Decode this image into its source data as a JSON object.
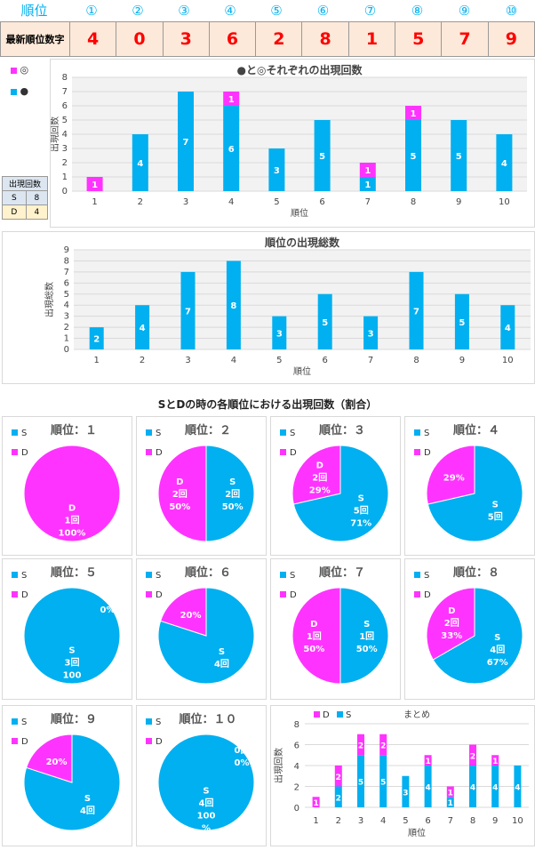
{
  "header": {
    "rank_label": "順位",
    "rank_numbers": [
      "①",
      "②",
      "③",
      "④",
      "⑤",
      "⑥",
      "⑦",
      "⑧",
      "⑨",
      "⑩"
    ],
    "digits_label": "最新順位数字",
    "digits": [
      "4",
      "0",
      "3",
      "6",
      "2",
      "8",
      "1",
      "5",
      "7",
      "9"
    ]
  },
  "legend_top": {
    "d_symbol": "◎",
    "s_symbol": "●"
  },
  "mini_table": {
    "title": "出現回数",
    "rows": [
      {
        "key": "S",
        "value": "8"
      },
      {
        "key": "D",
        "value": "4"
      }
    ]
  },
  "colors": {
    "s": "#00b0f0",
    "d": "#ff33ff",
    "grid": "#d9d9d9",
    "plot_bg": "#f2f2f2",
    "digit_bg": "#fde9d9",
    "digit_text": "#ff0000"
  },
  "chart_data": [
    {
      "type": "bar",
      "title": "●と◎それぞれの出現回数",
      "categories": [
        "1",
        "2",
        "3",
        "4",
        "5",
        "6",
        "7",
        "8",
        "9",
        "10"
      ],
      "series": [
        {
          "values": [
            0,
            4,
            7,
            6,
            3,
            5,
            1,
            5,
            5,
            4
          ]
        },
        {
          "values": [
            1,
            0,
            0,
            1,
            0,
            0,
            1,
            1,
            0,
            0
          ]
        }
      ],
      "xlabel": "順位",
      "ylabel": "出現回数",
      "ylim": [
        0,
        8
      ],
      "stacked": true,
      "grid": true
    },
    {
      "type": "bar",
      "title": "順位の出現総数",
      "categories": [
        "1",
        "2",
        "3",
        "4",
        "5",
        "6",
        "7",
        "8",
        "9",
        "10"
      ],
      "values": [
        2,
        4,
        7,
        8,
        3,
        5,
        3,
        7,
        5,
        4
      ],
      "xlabel": "順位",
      "ylabel": "出現総数",
      "ylim": [
        0,
        9
      ],
      "grid": true
    },
    {
      "type": "pie",
      "section_title": "SとDの時の各順位における出現回数（割合）",
      "legend": [
        "S",
        "D"
      ],
      "pies": [
        {
          "title": "順位：１",
          "s": 0,
          "d": 1,
          "s_label": "",
          "d_label": "D\n1回\n100%",
          "s_pct": "0%",
          "d_pct": "100%"
        },
        {
          "title": "順位：２",
          "s": 2,
          "d": 2,
          "s_label": "S\n2回\n50%",
          "d_label": "D\n2回\n50%"
        },
        {
          "title": "順位：３",
          "s": 5,
          "d": 2,
          "s_label": "S\n5回\n71%",
          "d_label": "D\n2回\n29%"
        },
        {
          "title": "順位：４",
          "s": 5,
          "d": 2,
          "s_label": "S\n5回",
          "d_label": "29%"
        },
        {
          "title": "順位：５",
          "s": 3,
          "d": 0,
          "s_label": "S\n3回\n100",
          "d_label": "0%"
        },
        {
          "title": "順位：６",
          "s": 4,
          "d": 1,
          "s_label": "S\n4回",
          "d_label": "20%"
        },
        {
          "title": "順位：７",
          "s": 1,
          "d": 1,
          "s_label": "S\n1回\n50%",
          "d_label": "D\n1回\n50%"
        },
        {
          "title": "順位：８",
          "s": 4,
          "d": 2,
          "s_label": "S\n4回\n67%",
          "d_label": "D\n2回\n33%"
        },
        {
          "title": "順位：９",
          "s": 4,
          "d": 1,
          "s_label": "S\n4回",
          "d_label": "20%"
        },
        {
          "title": "順位：１０",
          "s": 4,
          "d": 0,
          "s_label": "S\n4回\n100\n%",
          "d_label": "0回\n0%"
        }
      ]
    },
    {
      "type": "bar",
      "title": "まとめ",
      "categories": [
        "1",
        "2",
        "3",
        "4",
        "5",
        "6",
        "7",
        "8",
        "9",
        "10"
      ],
      "legend": [
        "D",
        "S"
      ],
      "series": [
        {
          "name": "S",
          "values": [
            0,
            2,
            5,
            5,
            3,
            4,
            1,
            4,
            4,
            4
          ]
        },
        {
          "name": "D",
          "values": [
            1,
            2,
            2,
            2,
            0,
            1,
            1,
            2,
            1,
            0
          ]
        }
      ],
      "xlabel": "順位",
      "ylabel": "出現回数",
      "ylim": [
        0,
        8
      ],
      "stacked": true
    }
  ]
}
